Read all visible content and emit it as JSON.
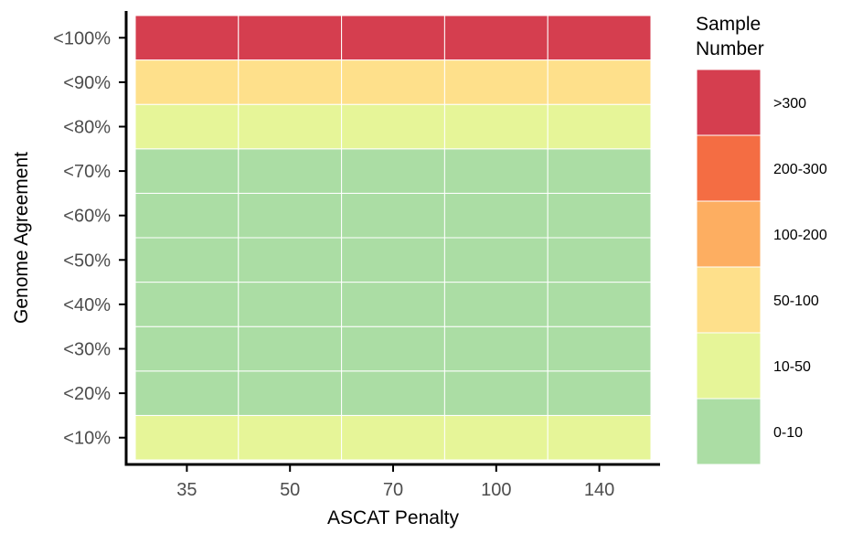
{
  "chart_data": {
    "type": "heatmap",
    "xlabel": "ASCAT Penalty",
    "ylabel": "Genome Agreement",
    "x_categories": [
      "35",
      "50",
      "70",
      "100",
      "140"
    ],
    "y_categories": [
      "<10%",
      "<20%",
      "<30%",
      "<40%",
      "<50%",
      "<60%",
      "<70%",
      "<80%",
      "<90%",
      "<100%"
    ],
    "legend": {
      "title_lines": [
        "Sample",
        "Number"
      ],
      "position": "right",
      "bins": [
        {
          "label": ">300",
          "color": "#d53e4f"
        },
        {
          "label": "200-300",
          "color": "#f46d43"
        },
        {
          "label": "100-200",
          "color": "#fdae61"
        },
        {
          "label": "50-100",
          "color": "#fee08b"
        },
        {
          "label": "10-50",
          "color": "#e6f598"
        },
        {
          "label": "0-10",
          "color": "#abdda4"
        }
      ]
    },
    "rows": [
      {
        "y": "<10%",
        "bins": [
          "10-50",
          "10-50",
          "10-50",
          "10-50",
          "10-50"
        ]
      },
      {
        "y": "<20%",
        "bins": [
          "0-10",
          "0-10",
          "0-10",
          "0-10",
          "0-10"
        ]
      },
      {
        "y": "<30%",
        "bins": [
          "0-10",
          "0-10",
          "0-10",
          "0-10",
          "0-10"
        ]
      },
      {
        "y": "<40%",
        "bins": [
          "0-10",
          "0-10",
          "0-10",
          "0-10",
          "0-10"
        ]
      },
      {
        "y": "<50%",
        "bins": [
          "0-10",
          "0-10",
          "0-10",
          "0-10",
          "0-10"
        ]
      },
      {
        "y": "<60%",
        "bins": [
          "0-10",
          "0-10",
          "0-10",
          "0-10",
          "0-10"
        ]
      },
      {
        "y": "<70%",
        "bins": [
          "0-10",
          "0-10",
          "0-10",
          "0-10",
          "0-10"
        ]
      },
      {
        "y": "<80%",
        "bins": [
          "10-50",
          "10-50",
          "10-50",
          "10-50",
          "10-50"
        ]
      },
      {
        "y": "<90%",
        "bins": [
          "50-100",
          "50-100",
          "50-100",
          "50-100",
          "50-100"
        ]
      },
      {
        "y": "<100%",
        "bins": [
          ">300",
          ">300",
          ">300",
          ">300",
          ">300"
        ]
      }
    ],
    "grid": false,
    "tile_border_color": "#ffffff",
    "axis_color": "#000000",
    "tick_label_color": "#4d4d4d"
  }
}
